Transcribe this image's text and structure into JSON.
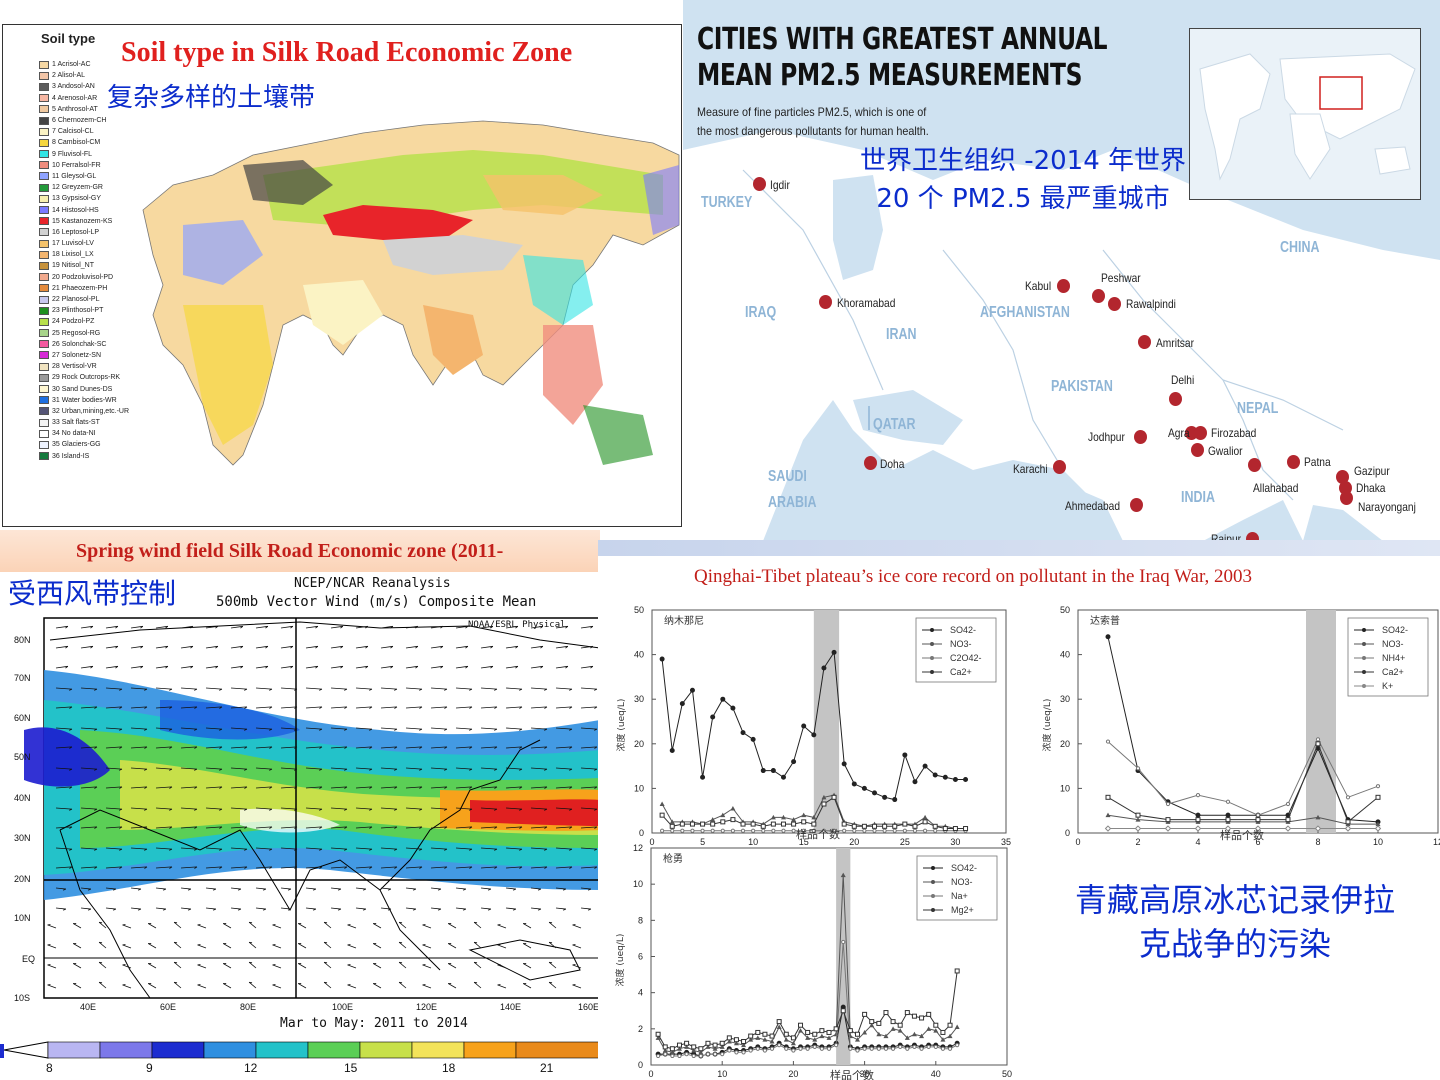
{
  "soil_panel": {
    "legend_title": "Soil type",
    "title": "Soil type in Silk Road Economic Zone",
    "subtitle": "复杂多样的土壤带",
    "legend": [
      {
        "label": "1 Acrisol-AC",
        "color": "#f6d8a4"
      },
      {
        "label": "2 Alisol-AL",
        "color": "#f3c6a8"
      },
      {
        "label": "3 Andosol-AN",
        "color": "#5c5c5c"
      },
      {
        "label": "4 Arenosol-AR",
        "color": "#f7b7a3"
      },
      {
        "label": "5 Anthrosol-AT",
        "color": "#f0c9a0"
      },
      {
        "label": "6 Chernozem-CH",
        "color": "#444444"
      },
      {
        "label": "7 Calcisol-CL",
        "color": "#fbf3c4"
      },
      {
        "label": "8 Cambisol-CM",
        "color": "#f6d73e"
      },
      {
        "label": "9 Fluvisol-FL",
        "color": "#33e5e5"
      },
      {
        "label": "10 Ferralsol-FR",
        "color": "#f08d7e"
      },
      {
        "label": "11 Gleysol-GL",
        "color": "#8fa3ff"
      },
      {
        "label": "12 Greyzem-GR",
        "color": "#239a3a"
      },
      {
        "label": "13 Gypsisol-GY",
        "color": "#f8f0b0"
      },
      {
        "label": "14 Histosol-HS",
        "color": "#7a7aff"
      },
      {
        "label": "15 Kastanozem-KS",
        "color": "#e8242a"
      },
      {
        "label": "16 Leptosol-LP",
        "color": "#d2d2d2"
      },
      {
        "label": "17 Luvisol-LV",
        "color": "#f5c26a"
      },
      {
        "label": "18 Lixisol_LX",
        "color": "#f4b56e"
      },
      {
        "label": "19 Nitisol_NT",
        "color": "#c7923b"
      },
      {
        "label": "20 Podzoluvisol-PD",
        "color": "#f1a98d"
      },
      {
        "label": "21 Phaeozem-PH",
        "color": "#e58b3c"
      },
      {
        "label": "22 Planosol-PL",
        "color": "#c8c8ee"
      },
      {
        "label": "23 Plinthosol-PT",
        "color": "#1e8f1e"
      },
      {
        "label": "24 Podzol-PZ",
        "color": "#b8e04c"
      },
      {
        "label": "25 Regosol-RG",
        "color": "#a7d48a"
      },
      {
        "label": "26 Solonchak-SC",
        "color": "#f45aa0"
      },
      {
        "label": "27 Solonetz-SN",
        "color": "#d62bd6"
      },
      {
        "label": "28 Vertisol-VR",
        "color": "#f0e3c0"
      },
      {
        "label": "29 Rock Outcrops-RK",
        "color": "#9a9a9a"
      },
      {
        "label": "30 Sand Dunes-DS",
        "color": "#fff7d2"
      },
      {
        "label": "31 Water bodies-WR",
        "color": "#1f6fe0"
      },
      {
        "label": "32 Urban,mining,etc.-UR",
        "color": "#555577"
      },
      {
        "label": "33 Salt flats-ST",
        "color": "#f3f3f3"
      },
      {
        "label": "34 No data-NI",
        "color": "#ffffff"
      },
      {
        "label": "35 Glaciers-GG",
        "color": "#eef3ff"
      },
      {
        "label": "36 Island-IS",
        "color": "#157a3d"
      }
    ]
  },
  "pm_panel": {
    "heading_line1": "CITIES WITH GREATEST ANNUAL",
    "heading_line2": "MEAN PM2.5 MEASUREMENTS",
    "desc_line1": "Measure of fine particles PM2.5, which is one of",
    "desc_line2": "the most dangerous pollutants for human health.",
    "who_line1": "世界卫生组织 -2014 年世界",
    "who_line2": "20 个 PM2.5 最严重城市",
    "countries": [
      "TURKEY",
      "IRAQ",
      "IRAN",
      "AFGHANISTAN",
      "PAKISTAN",
      "QATAR",
      "SAUDI",
      "ARABIA",
      "CHINA",
      "NEPAL",
      "INDIA"
    ],
    "cities": [
      "Igdir",
      "Khoramabad",
      "Kabul",
      "Peshwar",
      "Rawalpindi",
      "Amritsar",
      "Delhi",
      "Jodhpur",
      "Agra",
      "Firozabad",
      "Gwalior",
      "Karachi",
      "Doha",
      "Ahmedabad",
      "Allahabad",
      "Patna",
      "Gazipur",
      "Dhaka",
      "Narayonganj",
      "Raipur"
    ],
    "dot_color": "#b3262e"
  },
  "wind_panel": {
    "title": "Spring wind field Silk Road Economic zone (2011-",
    "subtitle": "受西风带控制",
    "chart_title1": "NCEP/NCAR Reanalysis",
    "chart_title2": "500mb Vector Wind (m/s) Composite Mean",
    "credit": "NOAA/ESRL Physical",
    "footer": "Mar to May: 2011 to 2014",
    "lat_labels": [
      "80N",
      "70N",
      "60N",
      "50N",
      "40N",
      "30N",
      "20N",
      "10N",
      "EQ",
      "10S"
    ],
    "lon_labels": [
      "40E",
      "60E",
      "80E",
      "100E",
      "120E",
      "140E",
      "160E"
    ],
    "colorbar_labels": [
      "8",
      "9",
      "12",
      "15",
      "18",
      "21"
    ]
  },
  "ice_panel": {
    "title": "Qinghai-Tibet plateau’s ice core record on pollutant in the Iraq  War, 2003",
    "zh_line1": "青藏高原冰芯记录伊拉",
    "zh_line2": "克战争的污染",
    "xaxis_label": "样品个数",
    "yaxis_label": "浓度 (ueq/L)"
  },
  "chart_data": [
    {
      "type": "line",
      "title": "纳木那尼",
      "xlabel": "样品个数",
      "ylabel": "浓度 (ueq/L)",
      "xlim": [
        0,
        35
      ],
      "ylim": [
        0,
        50
      ],
      "xticks": [
        "0",
        "5",
        "10",
        "15",
        "20",
        "25",
        "30",
        "35"
      ],
      "yticks": [
        "0",
        "10",
        "20",
        "30",
        "40",
        "50"
      ],
      "x": [
        1,
        2,
        3,
        4,
        5,
        6,
        7,
        8,
        9,
        10,
        11,
        12,
        13,
        14,
        15,
        16,
        17,
        18,
        19,
        20,
        21,
        22,
        23,
        24,
        25,
        26,
        27,
        28,
        29,
        30,
        31
      ],
      "series": [
        {
          "name": "SO42-",
          "values": [
            39,
            18.5,
            29,
            32,
            12.5,
            26,
            30,
            28,
            22.5,
            21,
            14,
            14,
            12.5,
            16,
            24,
            22,
            37,
            40.5,
            15.5,
            11,
            10,
            9,
            8,
            7.5,
            17.5,
            11.5,
            15,
            13,
            12.5,
            12,
            12
          ]
        },
        {
          "name": "NO3-",
          "values": [
            6.5,
            2.5,
            2.5,
            2.5,
            2,
            3,
            4,
            5.5,
            2.5,
            2.5,
            2,
            3.5,
            3.5,
            3,
            4,
            3.5,
            8,
            8.5,
            2.5,
            2,
            1.5,
            2,
            2,
            2,
            2,
            2,
            3.5,
            1.5,
            1.5,
            1,
            1
          ]
        },
        {
          "name": "C2O42-",
          "values": [
            0.5,
            0.5,
            0.5,
            0.5,
            0.5,
            0.5,
            0.5,
            0.5,
            0.5,
            0.5,
            0.5,
            0.5,
            0.5,
            0.5,
            0.5,
            0.5,
            0.5,
            0.5,
            0.5,
            0.5,
            0.5,
            0.5,
            0.5,
            0.5,
            0.5,
            0.5,
            0.5,
            0.5,
            0.5,
            0.5,
            0.5
          ]
        },
        {
          "name": "Ca2+",
          "values": [
            4,
            1.5,
            2,
            2,
            2,
            2,
            2.5,
            3,
            2,
            2,
            1.5,
            2,
            2,
            2,
            2.5,
            2,
            6.5,
            8,
            2,
            1.5,
            1.5,
            1.5,
            1.5,
            1.5,
            2,
            1.5,
            2.5,
            1.5,
            1,
            1,
            1
          ]
        }
      ]
    },
    {
      "type": "line",
      "title": "达索普",
      "xlabel": "样品个数",
      "ylabel": "浓度 (ueq/L)",
      "xlim": [
        0,
        12
      ],
      "ylim": [
        0,
        50
      ],
      "xticks": [
        "0",
        "2",
        "4",
        "6",
        "8",
        "10",
        "12"
      ],
      "yticks": [
        "0",
        "10",
        "20",
        "30",
        "40",
        "50"
      ],
      "x": [
        1,
        2,
        3,
        4,
        5,
        6,
        7,
        8,
        9,
        10
      ],
      "series": [
        {
          "name": "SO42-",
          "values": [
            44,
            14,
            7,
            4,
            4,
            4,
            4,
            19,
            3,
            2.5
          ]
        },
        {
          "name": "NO3-",
          "values": [
            4,
            3,
            2.5,
            2.5,
            2.5,
            2.5,
            2.5,
            3.5,
            2,
            2
          ]
        },
        {
          "name": "NH4+",
          "values": [
            20.5,
            14.5,
            6.5,
            8.5,
            7,
            4,
            6.5,
            21,
            8,
            10.5
          ]
        },
        {
          "name": "Ca2+",
          "values": [
            8,
            4,
            3,
            3,
            3,
            3,
            3,
            20,
            2.5,
            8
          ]
        },
        {
          "name": "K+",
          "values": [
            1,
            1,
            1,
            1,
            1,
            1,
            1,
            1,
            1,
            1
          ]
        }
      ]
    },
    {
      "type": "line",
      "title": "枪勇",
      "xlabel": "样品个数",
      "ylabel": "浓度 (ueq/L)",
      "xlim": [
        0,
        50
      ],
      "ylim": [
        0,
        12
      ],
      "xticks": [
        "0",
        "10",
        "20",
        "30",
        "40",
        "50"
      ],
      "yticks": [
        "0",
        "2",
        "4",
        "6",
        "8",
        "10",
        "12"
      ],
      "x": [
        1,
        2,
        3,
        4,
        5,
        6,
        7,
        8,
        9,
        10,
        11,
        12,
        13,
        14,
        15,
        16,
        17,
        18,
        19,
        20,
        21,
        22,
        23,
        24,
        25,
        26,
        27,
        28,
        29,
        30,
        31,
        32,
        33,
        34,
        35,
        36,
        37,
        38,
        39,
        40,
        41,
        42,
        43
      ],
      "series": [
        {
          "name": "SO42-",
          "values": [
            0.6,
            0.6,
            0.6,
            0.6,
            0.7,
            0.6,
            0.5,
            0.6,
            0.6,
            0.7,
            0.9,
            0.8,
            0.8,
            0.9,
            1,
            0.9,
            1,
            1.2,
            1,
            0.9,
            1,
            1,
            1.1,
            1,
            1,
            1.2,
            3.2,
            1,
            0.9,
            1,
            1,
            1,
            1,
            1,
            1.1,
            1,
            1.1,
            1,
            1.1,
            1.1,
            1,
            1,
            1.2
          ]
        },
        {
          "name": "NO3-",
          "values": [
            1.5,
            0.8,
            0.7,
            0.9,
            1,
            0.8,
            0.7,
            1,
            0.9,
            1,
            1.3,
            1.2,
            1.1,
            1.4,
            1.5,
            1.4,
            1.3,
            2.1,
            1.4,
            1.2,
            1.9,
            1.5,
            1.4,
            1.6,
            1.5,
            1.7,
            10.5,
            1.6,
            1.4,
            1.8,
            2.2,
            1.7,
            1.6,
            2,
            1.9,
            1.5,
            1.7,
            1.6,
            2,
            1.9,
            1.4,
            1.6,
            2.1
          ]
        },
        {
          "name": "Na+",
          "values": [
            0.5,
            0.6,
            0.5,
            0.5,
            0.6,
            0.5,
            0.5,
            0.6,
            0.6,
            0.6,
            0.8,
            0.7,
            0.7,
            0.8,
            0.9,
            0.8,
            0.9,
            1.1,
            0.9,
            0.8,
            0.9,
            0.9,
            1,
            0.9,
            0.9,
            1.1,
            6.8,
            0.9,
            0.8,
            0.9,
            0.9,
            0.9,
            0.9,
            0.9,
            1,
            0.9,
            1,
            0.9,
            1,
            1,
            0.9,
            0.9,
            1.1
          ]
        },
        {
          "name": "Mg2+",
          "values": [
            1.7,
            1,
            0.9,
            1.1,
            1.2,
            1,
            0.9,
            1.2,
            1.1,
            1.2,
            1.5,
            1.4,
            1.3,
            1.6,
            1.8,
            1.7,
            1.6,
            2.4,
            1.7,
            1.5,
            2.2,
            1.8,
            1.7,
            1.9,
            1.8,
            2,
            3,
            1.9,
            1.7,
            2.8,
            2.4,
            2.3,
            2.9,
            2.4,
            2.2,
            2.9,
            2.7,
            2.6,
            2.8,
            2.2,
            1.8,
            2.2,
            5.2
          ]
        }
      ]
    }
  ]
}
